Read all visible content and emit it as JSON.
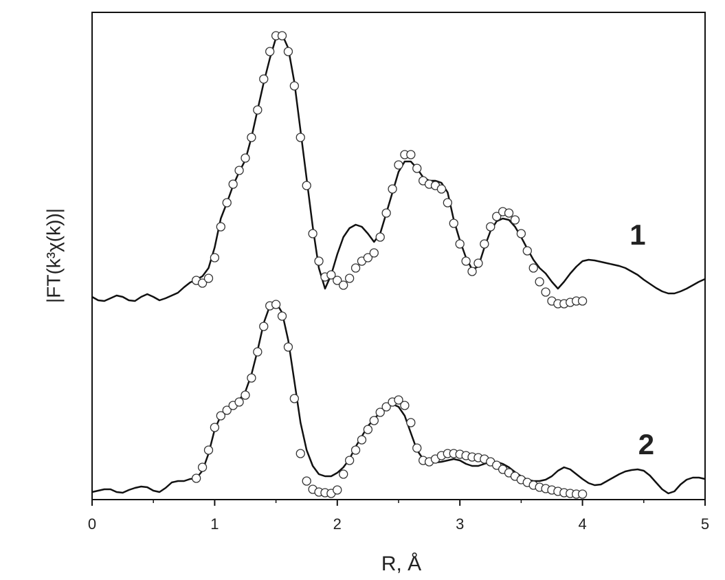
{
  "chart_data": {
    "type": "line",
    "xlabel": "R, Å",
    "ylabel": "|FT(k³χ(k))|",
    "xlim": [
      0,
      5
    ],
    "xticks": [
      0,
      1,
      2,
      3,
      4,
      5
    ],
    "xminorticks": [
      0.5,
      1.5,
      2.5,
      3.5,
      4.5
    ],
    "ylim": [
      0,
      709
    ],
    "annotations": [
      {
        "text": "1",
        "x": 4.45,
        "y": 382
      },
      {
        "text": "2",
        "x": 4.52,
        "y": 77
      }
    ],
    "series": [
      {
        "kind": "line",
        "color": "#111111",
        "x": [
          0,
          0.05,
          0.1,
          0.15,
          0.2,
          0.25,
          0.3,
          0.35,
          0.4,
          0.45,
          0.5,
          0.55,
          0.6,
          0.65,
          0.7,
          0.75,
          0.8,
          0.85,
          0.9,
          0.95,
          1,
          1.05,
          1.1,
          1.15,
          1.2,
          1.25,
          1.3,
          1.35,
          1.4,
          1.45,
          1.5,
          1.55,
          1.6,
          1.65,
          1.7,
          1.75,
          1.8,
          1.85,
          1.9,
          1.95,
          2,
          2.05,
          2.1,
          2.15,
          2.2,
          2.25,
          2.3,
          2.35,
          2.4,
          2.45,
          2.5,
          2.55,
          2.6,
          2.65,
          2.7,
          2.75,
          2.8,
          2.85,
          2.9,
          2.95,
          3,
          3.05,
          3.1,
          3.15,
          3.2,
          3.25,
          3.3,
          3.35,
          3.4,
          3.45,
          3.5,
          3.55,
          3.6,
          3.65,
          3.7,
          3.75,
          3.8,
          3.85,
          3.9,
          3.95,
          4,
          4.05,
          4.1,
          4.15,
          4.2,
          4.25,
          4.3,
          4.35,
          4.4,
          4.45,
          4.5,
          4.55,
          4.6,
          4.65,
          4.7,
          4.75,
          4.8,
          4.85,
          4.9,
          4.95,
          5
        ],
        "values": [
          295,
          290,
          289,
          293,
          297,
          295,
          290,
          289,
          295,
          299,
          295,
          290,
          293,
          297,
          301,
          309,
          316,
          320,
          325,
          337,
          367,
          409,
          432,
          457,
          477,
          494,
          527,
          567,
          607,
          642,
          672,
          677,
          657,
          607,
          537,
          467,
          397,
          337,
          307,
          327,
          357,
          382,
          395,
          400,
          397,
          387,
          375,
          387,
          417,
          447,
          477,
          492,
          492,
          482,
          469,
          464,
          464,
          461,
          447,
          407,
          377,
          352,
          335,
          339,
          367,
          391,
          405,
          409,
          407,
          397,
          382,
          365,
          349,
          337,
          329,
          317,
          307,
          317,
          329,
          339,
          347,
          349,
          348,
          346,
          344,
          342,
          340,
          337,
          332,
          327,
          320,
          314,
          308,
          303,
          300,
          300,
          303,
          307,
          312,
          317,
          321
        ]
      },
      {
        "kind": "scatter",
        "color": "#333333",
        "x": [
          0.85,
          0.9,
          0.95,
          1,
          1.05,
          1.1,
          1.15,
          1.2,
          1.25,
          1.3,
          1.35,
          1.4,
          1.45,
          1.5,
          1.55,
          1.6,
          1.65,
          1.7,
          1.75,
          1.8,
          1.85,
          1.9,
          1.95,
          2,
          2.05,
          2.1,
          2.15,
          2.2,
          2.25,
          2.3,
          2.35,
          2.4,
          2.45,
          2.5,
          2.55,
          2.6,
          2.65,
          2.7,
          2.75,
          2.8,
          2.85,
          2.9,
          2.95,
          3,
          3.05,
          3.1,
          3.15,
          3.2,
          3.25,
          3.3,
          3.35,
          3.4,
          3.45,
          3.5,
          3.55,
          3.6,
          3.65,
          3.7,
          3.75,
          3.8,
          3.85,
          3.9,
          3.95,
          4
        ],
        "values": [
          319,
          315,
          322,
          352,
          397,
          432,
          459,
          479,
          497,
          527,
          567,
          612,
          652,
          675,
          675,
          652,
          602,
          527,
          457,
          387,
          347,
          324,
          327,
          319,
          312,
          322,
          337,
          347,
          352,
          359,
          382,
          417,
          452,
          487,
          502,
          502,
          482,
          464,
          459,
          457,
          452,
          432,
          402,
          372,
          347,
          332,
          344,
          372,
          397,
          412,
          419,
          417,
          407,
          387,
          362,
          337,
          317,
          302,
          289,
          285,
          285,
          287,
          289,
          289
        ]
      },
      {
        "kind": "line",
        "color": "#111111",
        "x": [
          0,
          0.05,
          0.1,
          0.15,
          0.2,
          0.25,
          0.3,
          0.35,
          0.4,
          0.45,
          0.5,
          0.55,
          0.6,
          0.65,
          0.7,
          0.75,
          0.8,
          0.85,
          0.9,
          0.95,
          1,
          1.05,
          1.1,
          1.15,
          1.2,
          1.25,
          1.3,
          1.35,
          1.4,
          1.45,
          1.5,
          1.55,
          1.6,
          1.65,
          1.7,
          1.75,
          1.8,
          1.85,
          1.9,
          1.95,
          2,
          2.05,
          2.1,
          2.15,
          2.2,
          2.25,
          2.3,
          2.35,
          2.4,
          2.45,
          2.5,
          2.55,
          2.6,
          2.65,
          2.7,
          2.75,
          2.8,
          2.85,
          2.9,
          2.95,
          3,
          3.05,
          3.1,
          3.15,
          3.2,
          3.25,
          3.3,
          3.35,
          3.4,
          3.45,
          3.5,
          3.55,
          3.6,
          3.65,
          3.7,
          3.75,
          3.8,
          3.85,
          3.9,
          3.95,
          4,
          4.05,
          4.1,
          4.15,
          4.2,
          4.25,
          4.3,
          4.35,
          4.4,
          4.45,
          4.5,
          4.55,
          4.6,
          4.65,
          4.7,
          4.75,
          4.8,
          4.85,
          4.9,
          4.95,
          5
        ],
        "values": [
          11,
          13,
          15,
          15,
          11,
          10,
          14,
          17,
          19,
          18,
          13,
          11,
          17,
          25,
          27,
          27,
          30,
          31,
          42,
          67,
          102,
          122,
          130,
          137,
          145,
          157,
          182,
          217,
          257,
          282,
          287,
          272,
          232,
          172,
          112,
          72,
          49,
          37,
          34,
          34,
          39,
          47,
          59,
          77,
          92,
          107,
          117,
          127,
          135,
          139,
          135,
          122,
          97,
          72,
          59,
          55,
          54,
          55,
          57,
          59,
          57,
          52,
          49,
          49,
          52,
          55,
          55,
          52,
          47,
          40,
          34,
          29,
          27,
          27,
          29,
          34,
          42,
          47,
          44,
          37,
          30,
          24,
          21,
          22,
          27,
          32,
          37,
          41,
          43,
          44,
          42,
          35,
          25,
          15,
          9,
          12,
          22,
          29,
          32,
          32,
          30
        ]
      },
      {
        "kind": "scatter",
        "color": "#333333",
        "x": [
          0.85,
          0.9,
          0.95,
          1,
          1.05,
          1.1,
          1.15,
          1.2,
          1.25,
          1.3,
          1.35,
          1.4,
          1.45,
          1.5,
          1.55,
          1.6,
          1.65,
          1.7,
          1.75,
          1.8,
          1.85,
          1.9,
          1.95,
          2,
          2.05,
          2.1,
          2.15,
          2.2,
          2.25,
          2.3,
          2.35,
          2.4,
          2.45,
          2.5,
          2.55,
          2.6,
          2.65,
          2.7,
          2.75,
          2.8,
          2.85,
          2.9,
          2.95,
          3,
          3.05,
          3.1,
          3.15,
          3.2,
          3.25,
          3.3,
          3.35,
          3.4,
          3.45,
          3.5,
          3.55,
          3.6,
          3.65,
          3.7,
          3.75,
          3.8,
          3.85,
          3.9,
          3.95,
          4
        ],
        "values": [
          31,
          47,
          72,
          105,
          122,
          130,
          137,
          142,
          152,
          177,
          215,
          252,
          282,
          284,
          267,
          222,
          147,
          67,
          27,
          15,
          11,
          10,
          9,
          14,
          37,
          57,
          72,
          87,
          102,
          115,
          127,
          135,
          142,
          145,
          137,
          112,
          75,
          57,
          55,
          59,
          64,
          67,
          67,
          66,
          64,
          62,
          61,
          59,
          55,
          50,
          44,
          39,
          34,
          29,
          25,
          21,
          18,
          16,
          14,
          12,
          10,
          9,
          8,
          8
        ]
      }
    ]
  }
}
